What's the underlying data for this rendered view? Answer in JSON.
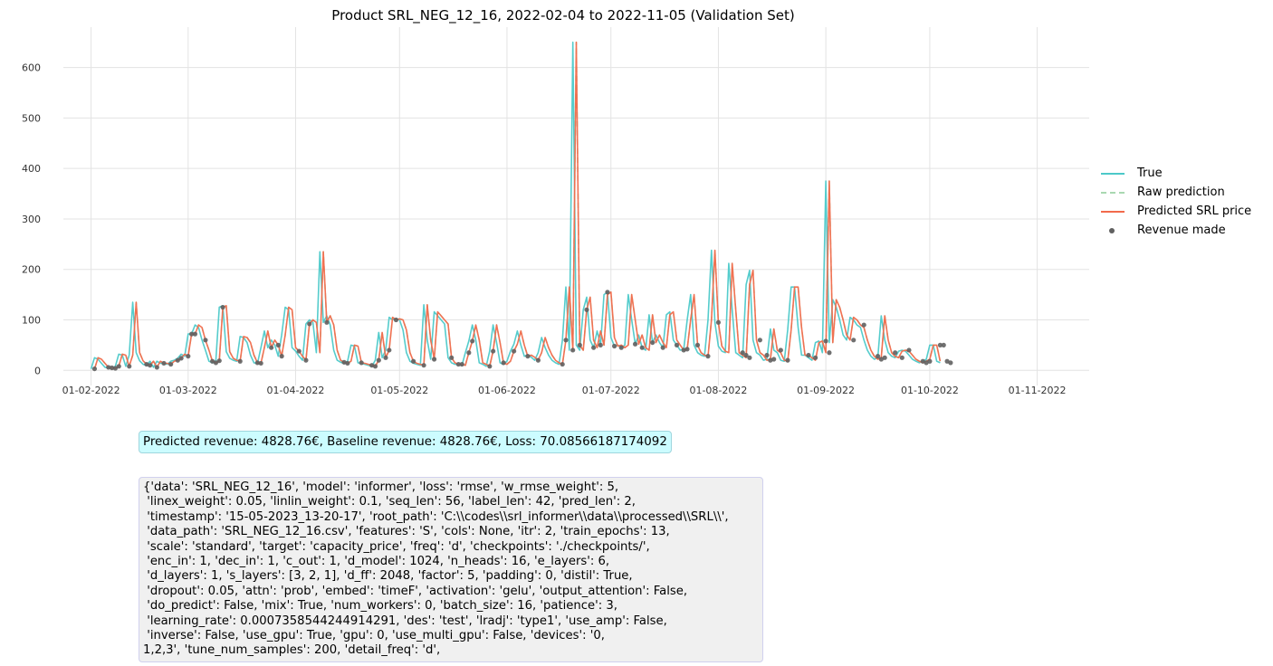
{
  "chart_data": {
    "type": "line",
    "title": "Product SRL_NEG_12_16, 2022-02-04 to 2022-11-05 (Validation Set)",
    "xlabel": "",
    "ylabel": "",
    "x_ticks": [
      "01-02-2022",
      "01-03-2022",
      "01-04-2022",
      "01-05-2022",
      "01-06-2022",
      "01-07-2022",
      "01-08-2022",
      "01-09-2022",
      "01-10-2022",
      "01-11-2022"
    ],
    "x_tick_days": [
      0,
      28,
      59,
      89,
      120,
      150,
      181,
      212,
      242,
      273
    ],
    "xlim_days": [
      -8,
      288
    ],
    "y_ticks": [
      0,
      100,
      200,
      300,
      400,
      500,
      600
    ],
    "ylim": [
      -30,
      680
    ],
    "grid": true,
    "legend_position": "right",
    "start_date": "2022-02-04",
    "series": [
      {
        "name": "True",
        "color": "#4cc9c9",
        "style": "solid",
        "values": [
          3,
          25,
          22,
          14,
          6,
          5,
          4,
          8,
          32,
          30,
          8,
          30,
          135,
          35,
          19,
          12,
          10,
          18,
          6,
          18,
          14,
          14,
          12,
          18,
          20,
          24,
          32,
          28,
          72,
          72,
          90,
          85,
          60,
          40,
          18,
          15,
          19,
          125,
          128,
          37,
          24,
          20,
          18,
          67,
          65,
          55,
          30,
          15,
          14,
          45,
          78,
          45,
          60,
          50,
          28,
          70,
          125,
          120,
          45,
          38,
          28,
          20,
          92,
          100,
          95,
          35,
          235,
          95,
          108,
          90,
          40,
          20,
          16,
          14,
          18,
          50,
          48,
          15,
          14,
          12,
          10,
          8,
          20,
          75,
          25,
          40,
          105,
          100,
          102,
          100,
          80,
          35,
          18,
          14,
          12,
          10,
          130,
          60,
          22,
          116,
          108,
          100,
          92,
          25,
          15,
          12,
          12,
          10,
          35,
          58,
          90,
          60,
          15,
          12,
          8,
          38,
          90,
          55,
          15,
          12,
          18,
          38,
          52,
          78,
          50,
          28,
          30,
          26,
          20,
          35,
          65,
          45,
          30,
          20,
          15,
          12,
          60,
          165,
          40,
          650,
          50,
          40,
          120,
          145,
          60,
          45,
          78,
          50,
          150,
          155,
          65,
          48,
          50,
          45,
          50,
          150,
          100,
          52,
          70,
          45,
          40,
          110,
          55,
          70,
          55,
          45,
          110,
          116,
          60,
          50,
          40,
          42,
          100,
          150,
          50,
          35,
          30,
          28,
          100,
          238,
          95,
          48,
          38,
          35,
          212,
          120,
          35,
          30,
          25,
          170,
          198,
          60,
          35,
          30,
          20,
          22,
          82,
          40,
          35,
          20,
          18,
          80,
          165,
          165,
          85,
          30,
          30,
          25,
          20,
          55,
          58,
          35,
          375,
          55,
          140,
          125,
          100,
          70,
          60,
          105,
          100,
          90,
          85,
          60,
          40,
          28,
          22,
          25,
          108,
          60,
          35,
          28,
          25,
          38,
          40,
          38,
          30,
          22,
          18,
          15,
          18,
          22,
          50,
          50,
          18,
          15
        ]
      },
      {
        "name": "Raw prediction",
        "color": "#a9d8b1",
        "style": "dashed",
        "values": [
          null,
          3,
          25,
          22,
          14,
          6,
          5,
          4,
          8,
          32,
          30,
          8,
          30,
          135,
          35,
          19,
          12,
          10,
          18,
          6,
          18,
          14,
          14,
          12,
          18,
          20,
          24,
          32,
          28,
          72,
          72,
          90,
          85,
          60,
          40,
          18,
          15,
          19,
          125,
          128,
          37,
          24,
          20,
          18,
          67,
          65,
          55,
          30,
          15,
          14,
          45,
          78,
          45,
          60,
          50,
          28,
          70,
          125,
          120,
          45,
          38,
          28,
          20,
          92,
          100,
          95,
          35,
          235,
          95,
          108,
          90,
          40,
          20,
          16,
          14,
          18,
          50,
          48,
          15,
          14,
          12,
          10,
          8,
          20,
          75,
          25,
          40,
          105,
          100,
          102,
          100,
          80,
          35,
          18,
          14,
          12,
          10,
          130,
          60,
          22,
          116,
          108,
          100,
          92,
          25,
          15,
          12,
          12,
          10,
          35,
          58,
          90,
          60,
          15,
          12,
          8,
          38,
          90,
          55,
          15,
          12,
          18,
          38,
          52,
          78,
          50,
          28,
          30,
          26,
          20,
          35,
          65,
          45,
          30,
          20,
          15,
          12,
          60,
          165,
          40,
          650,
          50,
          40,
          120,
          145,
          60,
          45,
          78,
          50,
          150,
          155,
          65,
          48,
          50,
          45,
          50,
          150,
          100,
          52,
          70,
          45,
          40,
          110,
          55,
          70,
          55,
          45,
          110,
          116,
          60,
          50,
          40,
          42,
          100,
          150,
          50,
          35,
          30,
          28,
          100,
          238,
          95,
          48,
          38,
          35,
          212,
          120,
          35,
          30,
          25,
          170,
          198,
          60,
          35,
          30,
          20,
          22,
          82,
          40,
          35,
          20,
          18,
          80,
          165,
          165,
          85,
          30,
          30,
          25,
          20,
          55,
          58,
          35,
          375,
          55,
          140,
          125,
          100,
          70,
          60,
          105,
          100,
          90,
          85,
          60,
          40,
          28,
          22,
          25,
          108,
          60,
          35,
          28,
          25,
          38,
          40,
          38,
          30,
          22,
          18,
          15,
          18,
          22,
          50,
          50,
          18
        ]
      },
      {
        "name": "Predicted SRL price",
        "color": "#f26a4b",
        "style": "solid",
        "values": [
          null,
          3,
          25,
          22,
          14,
          6,
          5,
          4,
          8,
          32,
          30,
          8,
          30,
          135,
          35,
          19,
          12,
          10,
          18,
          6,
          18,
          14,
          14,
          12,
          18,
          20,
          24,
          32,
          28,
          72,
          72,
          90,
          85,
          60,
          40,
          18,
          15,
          19,
          125,
          128,
          37,
          24,
          20,
          18,
          67,
          65,
          55,
          30,
          15,
          14,
          45,
          78,
          45,
          60,
          50,
          28,
          70,
          125,
          120,
          45,
          38,
          28,
          20,
          92,
          100,
          95,
          35,
          235,
          95,
          108,
          90,
          40,
          20,
          16,
          14,
          18,
          50,
          48,
          15,
          14,
          12,
          10,
          8,
          20,
          75,
          25,
          40,
          105,
          100,
          102,
          100,
          80,
          35,
          18,
          14,
          12,
          10,
          130,
          60,
          22,
          116,
          108,
          100,
          92,
          25,
          15,
          12,
          12,
          10,
          35,
          58,
          90,
          60,
          15,
          12,
          8,
          38,
          90,
          55,
          15,
          12,
          18,
          38,
          52,
          78,
          50,
          28,
          30,
          26,
          20,
          35,
          65,
          45,
          30,
          20,
          15,
          12,
          60,
          165,
          40,
          650,
          50,
          40,
          120,
          145,
          60,
          45,
          78,
          50,
          150,
          155,
          65,
          48,
          50,
          45,
          50,
          150,
          100,
          52,
          70,
          45,
          40,
          110,
          55,
          70,
          55,
          45,
          110,
          116,
          60,
          50,
          40,
          42,
          100,
          150,
          50,
          35,
          30,
          28,
          100,
          238,
          95,
          48,
          38,
          35,
          212,
          120,
          35,
          30,
          25,
          170,
          198,
          60,
          35,
          30,
          20,
          22,
          82,
          40,
          35,
          20,
          18,
          80,
          165,
          165,
          85,
          30,
          30,
          25,
          20,
          55,
          58,
          35,
          375,
          55,
          140,
          125,
          100,
          70,
          60,
          105,
          100,
          90,
          85,
          60,
          40,
          28,
          22,
          25,
          108,
          60,
          35,
          28,
          25,
          38,
          40,
          38,
          30,
          22,
          18,
          15,
          18,
          22,
          50,
          50,
          18
        ]
      },
      {
        "name": "Revenue made",
        "color": "#606060",
        "style": "markers",
        "values": [
          null,
          3,
          null,
          null,
          null,
          6,
          5,
          4,
          8,
          null,
          null,
          8,
          null,
          null,
          null,
          null,
          12,
          10,
          null,
          6,
          null,
          14,
          null,
          12,
          null,
          20,
          24,
          null,
          28,
          72,
          72,
          null,
          null,
          60,
          null,
          18,
          15,
          19,
          125,
          null,
          null,
          null,
          null,
          18,
          null,
          null,
          null,
          null,
          15,
          14,
          null,
          null,
          45,
          null,
          50,
          28,
          null,
          null,
          null,
          null,
          38,
          null,
          20,
          92,
          null,
          null,
          null,
          null,
          95,
          null,
          null,
          null,
          null,
          16,
          14,
          null,
          null,
          null,
          15,
          null,
          null,
          10,
          8,
          20,
          null,
          25,
          40,
          null,
          100,
          null,
          null,
          null,
          null,
          18,
          null,
          null,
          10,
          null,
          null,
          22,
          null,
          null,
          null,
          null,
          25,
          null,
          12,
          12,
          null,
          35,
          58,
          null,
          null,
          null,
          null,
          8,
          38,
          null,
          null,
          15,
          null,
          null,
          38,
          null,
          null,
          null,
          28,
          null,
          null,
          20,
          null,
          null,
          null,
          null,
          null,
          null,
          12,
          60,
          null,
          40,
          null,
          50,
          null,
          120,
          null,
          45,
          null,
          50,
          null,
          155,
          null,
          48,
          null,
          45,
          null,
          null,
          null,
          52,
          null,
          45,
          null,
          null,
          55,
          null,
          null,
          45,
          null,
          null,
          null,
          50,
          null,
          40,
          42,
          null,
          null,
          50,
          null,
          null,
          28,
          null,
          null,
          95,
          null,
          null,
          null,
          null,
          null,
          null,
          35,
          30,
          25,
          null,
          null,
          60,
          null,
          30,
          20,
          22,
          null,
          40,
          null,
          20,
          null,
          null,
          null,
          null,
          null,
          30,
          null,
          25,
          null,
          null,
          58,
          35,
          null,
          null,
          null,
          null,
          null,
          null,
          60,
          null,
          null,
          90,
          null,
          null,
          null,
          28,
          22,
          25,
          null,
          null,
          35,
          null,
          25,
          null,
          40,
          null,
          null,
          null,
          18,
          15,
          18,
          null,
          null,
          50,
          50,
          18,
          15
        ]
      }
    ]
  },
  "revenue_text": "Predicted revenue: 4828.76€, Baseline revenue: 4828.76€, Loss: 70.08566187174092",
  "params_text": "{'data': 'SRL_NEG_12_16', 'model': 'informer', 'loss': 'rmse', 'w_rmse_weight': 5,\n 'linex_weight': 0.05, 'linlin_weight': 0.1, 'seq_len': 56, 'label_len': 42, 'pred_len': 2,\n 'timestamp': '15-05-2023_13-20-17', 'root_path': 'C:\\\\codes\\\\srl_informer\\\\data\\\\processed\\\\SRL\\\\',\n 'data_path': 'SRL_NEG_12_16.csv', 'features': 'S', 'cols': None, 'itr': 2, 'train_epochs': 13,\n 'scale': 'standard', 'target': 'capacity_price', 'freq': 'd', 'checkpoints': './checkpoints/',\n 'enc_in': 1, 'dec_in': 1, 'c_out': 1, 'd_model': 1024, 'n_heads': 16, 'e_layers': 6,\n 'd_layers': 1, 's_layers': [3, 2, 1], 'd_ff': 2048, 'factor': 5, 'padding': 0, 'distil': True,\n 'dropout': 0.05, 'attn': 'prob', 'embed': 'timeF', 'activation': 'gelu', 'output_attention': False,\n 'do_predict': False, 'mix': True, 'num_workers': 0, 'batch_size': 16, 'patience': 3,\n 'learning_rate': 0.0007358544244914291, 'des': 'test', 'lradj': 'type1', 'use_amp': False,\n 'inverse': False, 'use_gpu': True, 'gpu': 0, 'use_multi_gpu': False, 'devices': '0,\n1,2,3', 'tune_num_samples': 200, 'detail_freq': 'd',"
}
